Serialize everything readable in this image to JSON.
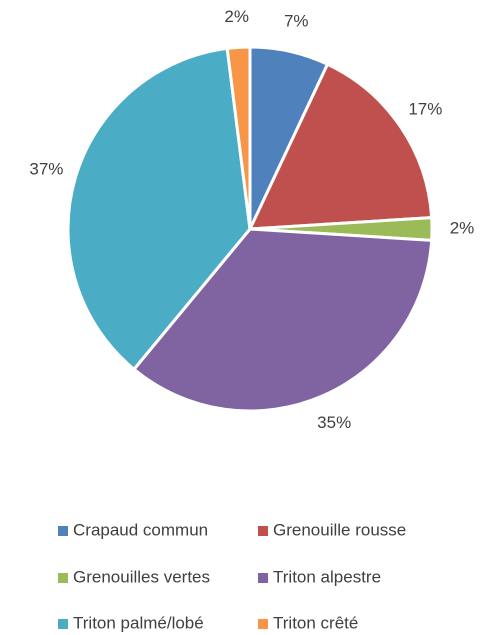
{
  "chart_data": {
    "type": "pie",
    "categories": [
      "Crapaud commun",
      "Grenouille rousse",
      "Grenouilles vertes",
      "Triton alpestre",
      "Triton palmé/lobé",
      "Triton crêté"
    ],
    "values": [
      7,
      17,
      2,
      35,
      37,
      2
    ],
    "value_labels": [
      "7%",
      "17%",
      "2%",
      "35%",
      "37%",
      "2%"
    ],
    "colors": [
      "#4f81bd",
      "#c0504d",
      "#9bbb59",
      "#8064a2",
      "#4bacc6",
      "#f79646"
    ],
    "legend": "bottom"
  }
}
